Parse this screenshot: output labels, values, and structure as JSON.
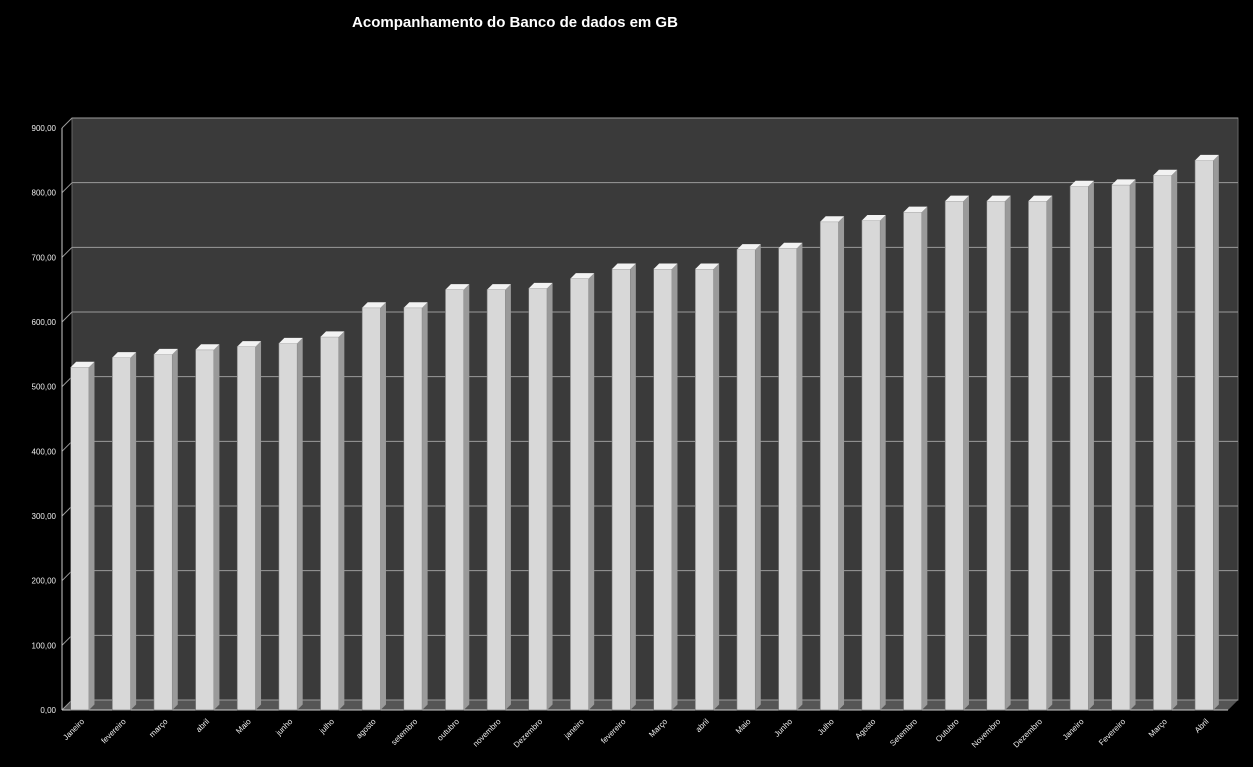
{
  "chart_data": {
    "type": "bar",
    "title": "Acompanhamento do Banco de dados em GB",
    "xlabel": "",
    "ylabel": "",
    "ylim": [
      0,
      900
    ],
    "yticks": [
      "0,00",
      "100,00",
      "200,00",
      "300,00",
      "400,00",
      "500,00",
      "600,00",
      "700,00",
      "800,00",
      "900,00"
    ],
    "grid": true,
    "legend": "none",
    "colors": {
      "bar": "#d8d8d8",
      "bar_top": "#f2f2f2",
      "bar_side": "#9a9a9a",
      "plot_bg": "#3a3a3a",
      "grid": "#9b9b9b"
    },
    "categories": [
      "Janeiro",
      "fevereiro",
      "março",
      "abril",
      "Maio",
      "junho",
      "julho",
      "agosto",
      "setembro",
      "outubro",
      "novembro",
      "Dezembro",
      "janeiro",
      "fevereiro",
      "Março",
      "abril",
      "Maio",
      "Junho",
      "Julho",
      "Agosto",
      "Setembro",
      "Outubro",
      "Novembro",
      "Dezembro",
      "Janeiro",
      "Fevereiro",
      "Março",
      "Abril"
    ],
    "values": [
      530,
      545,
      550,
      557,
      562,
      567,
      577,
      622,
      622,
      650,
      650,
      652,
      667,
      682,
      682,
      682,
      712,
      714,
      755,
      757,
      770,
      787,
      787,
      787,
      810,
      812,
      827,
      850
    ]
  }
}
